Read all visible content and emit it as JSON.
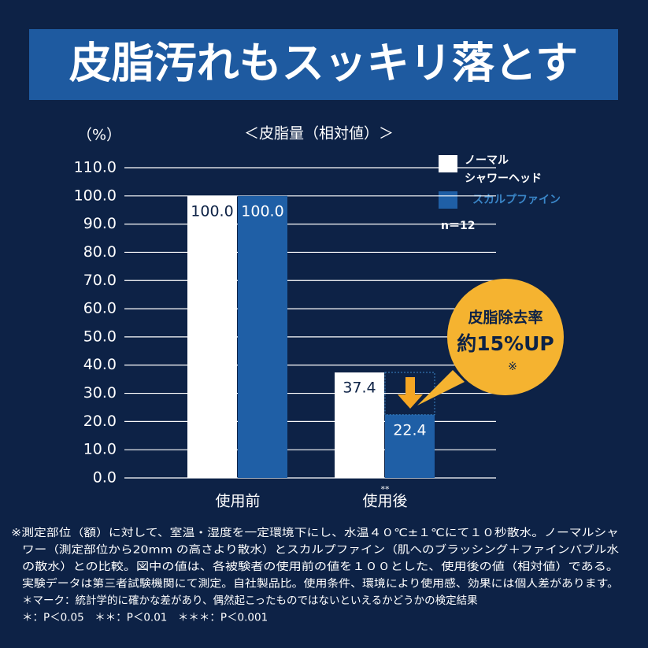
{
  "chart_data": {
    "type": "bar",
    "title": "皮脂汚れもスッキリ落とす",
    "subtitle": "＜皮脂量（相対値）＞",
    "y_label": "（%）",
    "categories": [
      "使用前",
      "使用後"
    ],
    "series": [
      {
        "name": "ノーマル\nシャワーヘッド",
        "color": "#ffffff",
        "values": [
          100,
          37.4
        ],
        "value_labels": [
          "100.0",
          "37.4"
        ]
      },
      {
        "name": "スカルプファイン",
        "color": "#1f5fa6",
        "values": [
          100,
          22.4
        ],
        "value_labels": [
          "100.0",
          "22.4"
        ]
      }
    ],
    "ylim": [
      0,
      110
    ],
    "yticks": [
      {
        "value": 0,
        "label": "0.0"
      },
      {
        "value": 10,
        "label": "10.0"
      },
      {
        "value": 20,
        "label": "20.0"
      },
      {
        "value": 30,
        "label": "30.0"
      },
      {
        "value": 40,
        "label": "40.0"
      },
      {
        "value": 50,
        "label": "50.0"
      },
      {
        "value": 60,
        "label": "60.0"
      },
      {
        "value": 70,
        "label": "70.0"
      },
      {
        "value": 80,
        "label": "80.0"
      },
      {
        "value": 90,
        "label": "90.0"
      },
      {
        "value": 100,
        "label": "100.0"
      },
      {
        "value": 110,
        "label": "110.0"
      }
    ],
    "grid": true,
    "annotations": {
      "sample": "n＝12",
      "callout_title": "皮脂除去率",
      "callout_value": "約15%UP",
      "callout_note": "※",
      "significance": "**"
    },
    "footnotes": [
      "※測定部位（額）に対して、室温・湿度を一定環境下にし、水温４０℃±１℃にて１０秒散水。ノーマルシャ",
      "ワー（測定部位から20mm の高さより散水）とスカルプファイン（肌へのブラッシング＋ファインバブル水",
      "の散水）との比較。図中の値は、各被験者の使用前の値を１００とした、使用後の値（相対値）である。",
      "実験データは第三者試験機関にて測定。自社製品比。使用条件、環境により使用感、効果には個人差があります。",
      "＊マーク：統計学的に確かな差があり、偶然起こったものではないといえるかどうかの検定結果",
      "＊：P＜0.05　＊＊：P＜0.01　＊＊＊：P＜0.001"
    ]
  }
}
